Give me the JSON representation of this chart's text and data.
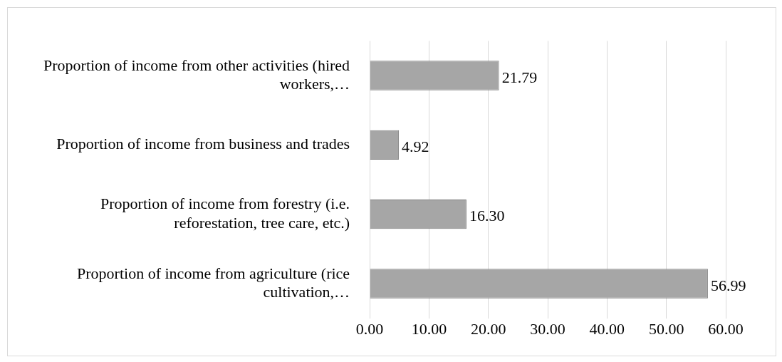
{
  "chart_data": {
    "type": "bar",
    "orientation": "horizontal",
    "categories": [
      "Proportion of income from other activities (hired workers,…",
      "Proportion of income from business and trades",
      "Proportion of income from forestry (i.e. reforestation, tree care, etc.)",
      "Proportion of income from agriculture (rice cultivation,…"
    ],
    "values": [
      21.79,
      4.92,
      16.3,
      56.99
    ],
    "value_labels": [
      "21.79",
      "4.92",
      "16.30",
      "56.99"
    ],
    "color": "#a6a6a6",
    "xlim": [
      0,
      60
    ],
    "xticks": [
      {
        "value": 0,
        "label": "0.00"
      },
      {
        "value": 10,
        "label": "10.00"
      },
      {
        "value": 20,
        "label": "20.00"
      },
      {
        "value": 30,
        "label": "30.00"
      },
      {
        "value": 40,
        "label": "40.00"
      },
      {
        "value": 50,
        "label": "50.00"
      },
      {
        "value": 60,
        "label": "60.00"
      }
    ],
    "grid": "x",
    "legend": false
  }
}
